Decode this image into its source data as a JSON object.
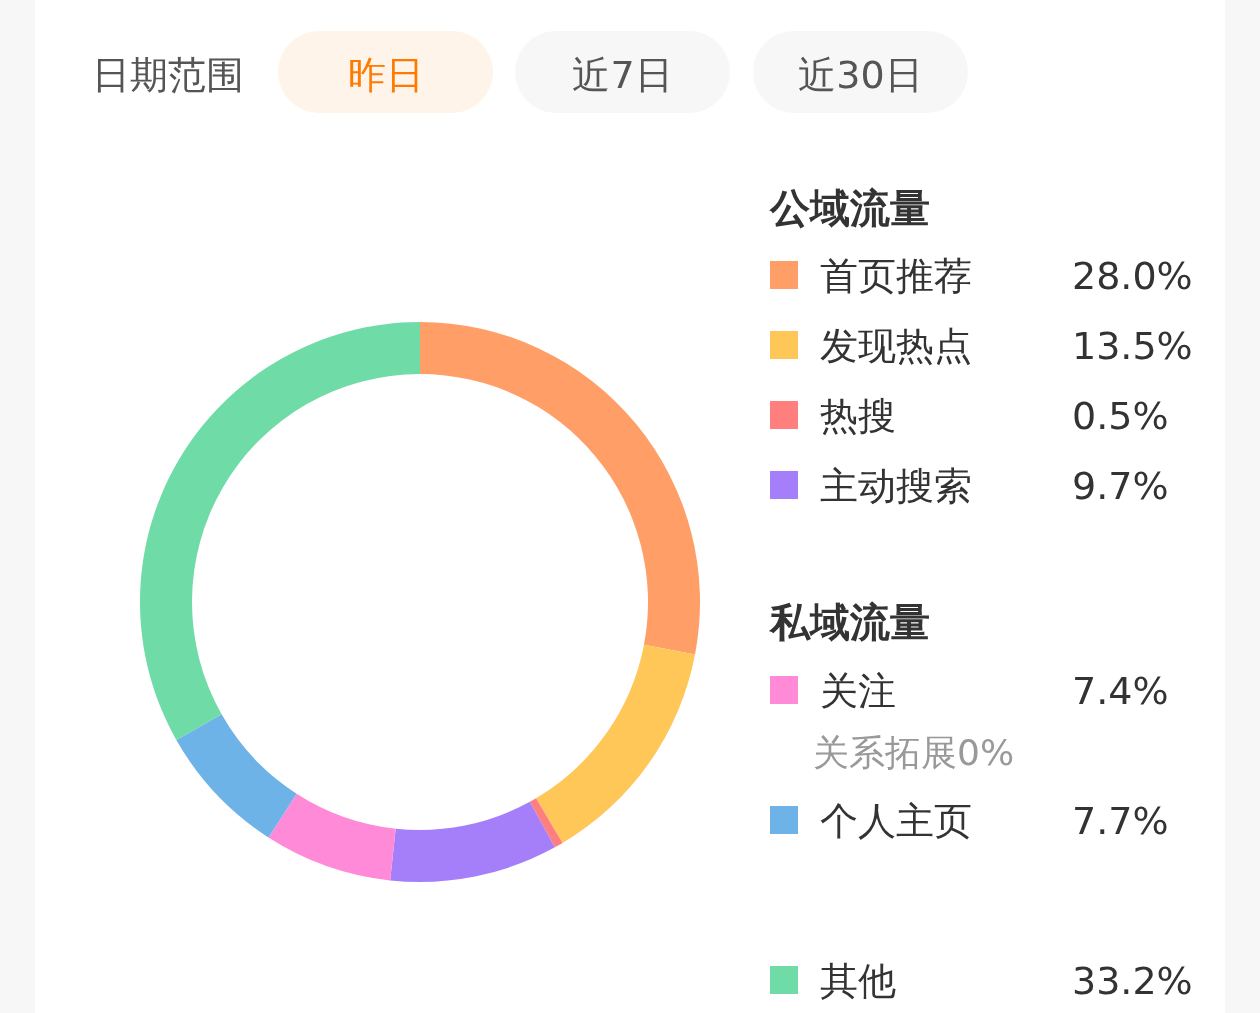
{
  "chart_data": {
    "type": "donut",
    "categories": [
      "首页推荐",
      "发现热点",
      "热搜",
      "主动搜索",
      "关注",
      "个人主页",
      "其他"
    ],
    "values": [
      28.0,
      13.5,
      0.5,
      9.7,
      7.4,
      7.7,
      33.2
    ],
    "colors": [
      "#ff9f67",
      "#ffc658",
      "#ff7f7f",
      "#a57ffa",
      "#ff8ad8",
      "#6db3e8",
      "#6fdba6"
    ],
    "value_labels": [
      "28.0%",
      "13.5%",
      "0.5%",
      "9.7%",
      "7.4%",
      "7.7%",
      "33.2%"
    ],
    "legend": "right",
    "annotations": [
      "日期范围",
      "昨日",
      "近7日",
      "近30日",
      "公域流量",
      "私域流量",
      "关系拓展0%"
    ]
  }
}
